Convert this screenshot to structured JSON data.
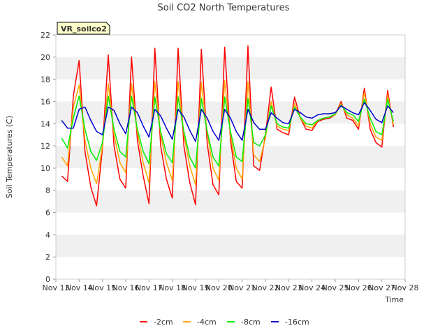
{
  "chart_data": {
    "type": "line",
    "title": "Soil CO2 North Temperatures",
    "xlabel": "Time",
    "ylabel": "Soil Temperatures (C)",
    "xlim": [
      "2024-11-13",
      "2024-11-28"
    ],
    "ylim": [
      0,
      22
    ],
    "x_ticks": [
      "Nov 13",
      "Nov 14",
      "Nov 15",
      "Nov 16",
      "Nov 17",
      "Nov 18",
      "Nov 19",
      "Nov 20",
      "Nov 21",
      "Nov 22",
      "Nov 23",
      "Nov 24",
      "Nov 25",
      "Nov 26",
      "Nov 27",
      "Nov 28"
    ],
    "y_ticks": [
      0,
      2,
      4,
      6,
      8,
      10,
      12,
      14,
      16,
      18,
      20,
      22
    ],
    "grid": "horizontal alternating bands",
    "legend_position": "bottom",
    "annotation": "VR_soilco2",
    "colors": {
      "band": "#f0f0f0",
      "axis": "#cccccc",
      "annotation_bg": "#ffffcc",
      "annotation_text": "#8b0000"
    },
    "series": [
      {
        "name": "-2cm",
        "color": "#ff0000",
        "x": [
          "11-13 06:00",
          "11-13 12:00",
          "11-13 18:00",
          "11-14 00:00",
          "11-14 06:00",
          "11-14 12:00",
          "11-14 18:00",
          "11-15 00:00",
          "11-15 06:00",
          "11-15 12:00",
          "11-15 18:00",
          "11-16 00:00",
          "11-16 06:00",
          "11-16 12:00",
          "11-16 18:00",
          "11-17 00:00",
          "11-17 06:00",
          "11-17 12:00",
          "11-17 18:00",
          "11-18 00:00",
          "11-18 06:00",
          "11-18 12:00",
          "11-18 18:00",
          "11-19 00:00",
          "11-19 06:00",
          "11-19 12:00",
          "11-19 18:00",
          "11-20 00:00",
          "11-20 06:00",
          "11-20 12:00",
          "11-20 18:00",
          "11-21 00:00",
          "11-21 06:00",
          "11-21 12:00",
          "11-21 18:00",
          "11-22 00:00",
          "11-22 06:00",
          "11-22 12:00",
          "11-22 18:00",
          "11-23 00:00",
          "11-23 06:00",
          "11-23 12:00",
          "11-23 18:00",
          "11-24 00:00",
          "11-24 06:00",
          "11-24 12:00",
          "11-24 18:00",
          "11-25 00:00",
          "11-25 06:00",
          "11-25 12:00",
          "11-25 18:00",
          "11-26 00:00",
          "11-26 06:00",
          "11-26 12:00",
          "11-26 18:00",
          "11-27 00:00",
          "11-27 06:00",
          "11-27 12:00"
        ],
        "values": [
          9.3,
          8.8,
          16.5,
          19.7,
          11.5,
          8.3,
          6.6,
          11.8,
          20.2,
          12.0,
          9.0,
          8.2,
          20.0,
          12.5,
          9.3,
          6.8,
          20.8,
          12.0,
          9.0,
          7.3,
          20.8,
          12.0,
          8.7,
          6.7,
          20.7,
          12.2,
          8.5,
          7.6,
          20.9,
          12.5,
          8.8,
          8.2,
          21.0,
          10.2,
          9.8,
          13.0,
          17.3,
          13.5,
          13.2,
          13.0,
          16.4,
          14.5,
          13.5,
          13.4,
          14.2,
          14.4,
          14.5,
          14.8,
          16.0,
          14.5,
          14.3,
          13.5,
          17.2,
          13.5,
          12.3,
          11.9,
          17.0,
          13.7
        ]
      },
      {
        "name": "-4cm",
        "color": "#ffa500",
        "x": [
          "11-13 06:00",
          "11-13 12:00",
          "11-13 18:00",
          "11-14 00:00",
          "11-14 06:00",
          "11-14 12:00",
          "11-14 18:00",
          "11-15 00:00",
          "11-15 06:00",
          "11-15 12:00",
          "11-15 18:00",
          "11-16 00:00",
          "11-16 06:00",
          "11-16 12:00",
          "11-16 18:00",
          "11-17 00:00",
          "11-17 06:00",
          "11-17 12:00",
          "11-17 18:00",
          "11-18 00:00",
          "11-18 06:00",
          "11-18 12:00",
          "11-18 18:00",
          "11-19 00:00",
          "11-19 06:00",
          "11-19 12:00",
          "11-19 18:00",
          "11-20 00:00",
          "11-20 06:00",
          "11-20 12:00",
          "11-20 18:00",
          "11-21 00:00",
          "11-21 06:00",
          "11-21 12:00",
          "11-21 18:00",
          "11-22 00:00",
          "11-22 06:00",
          "11-22 12:00",
          "11-22 18:00",
          "11-23 00:00",
          "11-23 06:00",
          "11-23 12:00",
          "11-23 18:00",
          "11-24 00:00",
          "11-24 06:00",
          "11-24 12:00",
          "11-24 18:00",
          "11-25 00:00",
          "11-25 06:00",
          "11-25 12:00",
          "11-25 18:00",
          "11-26 00:00",
          "11-26 06:00",
          "11-26 12:00",
          "11-26 18:00",
          "11-27 00:00",
          "11-27 06:00",
          "11-27 12:00"
        ],
        "values": [
          11.0,
          10.2,
          15.5,
          17.5,
          12.5,
          10.0,
          8.6,
          12.0,
          17.6,
          13.0,
          10.5,
          9.6,
          17.6,
          13.2,
          10.5,
          8.7,
          17.8,
          13.0,
          10.5,
          8.9,
          17.8,
          13.0,
          10.2,
          8.5,
          17.7,
          13.2,
          10.0,
          8.9,
          17.9,
          13.0,
          10.0,
          9.0,
          17.8,
          11.2,
          10.6,
          12.7,
          16.0,
          13.8,
          13.5,
          13.4,
          15.8,
          14.5,
          13.8,
          13.6,
          14.3,
          14.5,
          14.6,
          14.8,
          15.8,
          14.8,
          14.5,
          13.8,
          16.8,
          14.0,
          12.8,
          12.5,
          16.6,
          13.9
        ]
      },
      {
        "name": "-8cm",
        "color": "#00ee00",
        "x": [
          "11-13 06:00",
          "11-13 12:00",
          "11-13 18:00",
          "11-14 00:00",
          "11-14 06:00",
          "11-14 12:00",
          "11-14 18:00",
          "11-15 00:00",
          "11-15 06:00",
          "11-15 12:00",
          "11-15 18:00",
          "11-16 00:00",
          "11-16 06:00",
          "11-16 12:00",
          "11-16 18:00",
          "11-17 00:00",
          "11-17 06:00",
          "11-17 12:00",
          "11-17 18:00",
          "11-18 00:00",
          "11-18 06:00",
          "11-18 12:00",
          "11-18 18:00",
          "11-19 00:00",
          "11-19 06:00",
          "11-19 12:00",
          "11-19 18:00",
          "11-20 00:00",
          "11-20 06:00",
          "11-20 12:00",
          "11-20 18:00",
          "11-21 00:00",
          "11-21 06:00",
          "11-21 12:00",
          "11-21 18:00",
          "11-22 00:00",
          "11-22 06:00",
          "11-22 12:00",
          "11-22 18:00",
          "11-23 00:00",
          "11-23 06:00",
          "11-23 12:00",
          "11-23 18:00",
          "11-24 00:00",
          "11-24 06:00",
          "11-24 12:00",
          "11-24 18:00",
          "11-25 00:00",
          "11-25 06:00",
          "11-25 12:00",
          "11-25 18:00",
          "11-26 00:00",
          "11-26 06:00",
          "11-26 12:00",
          "11-26 18:00",
          "11-27 00:00",
          "11-27 06:00",
          "11-27 12:00"
        ],
        "values": [
          12.7,
          11.8,
          14.5,
          16.5,
          13.5,
          11.5,
          10.7,
          12.3,
          16.5,
          13.5,
          11.5,
          11.0,
          16.5,
          13.5,
          11.5,
          10.4,
          16.4,
          13.3,
          11.3,
          10.5,
          16.4,
          13.3,
          11.0,
          10.0,
          16.3,
          13.3,
          11.0,
          10.2,
          16.4,
          13.3,
          11.0,
          10.6,
          16.3,
          12.3,
          12.0,
          13.0,
          15.6,
          14.0,
          13.7,
          13.6,
          15.5,
          14.6,
          14.0,
          13.9,
          14.3,
          14.5,
          14.6,
          14.9,
          15.7,
          15.0,
          14.8,
          14.2,
          16.2,
          14.5,
          13.3,
          13.0,
          16.2,
          14.2
        ]
      },
      {
        "name": "-16cm",
        "color": "#0000cd",
        "x": [
          "11-13 06:00",
          "11-13 12:00",
          "11-13 18:00",
          "11-14 00:00",
          "11-14 06:00",
          "11-14 12:00",
          "11-14 18:00",
          "11-15 00:00",
          "11-15 06:00",
          "11-15 12:00",
          "11-15 18:00",
          "11-16 00:00",
          "11-16 06:00",
          "11-16 12:00",
          "11-16 18:00",
          "11-17 00:00",
          "11-17 06:00",
          "11-17 12:00",
          "11-17 18:00",
          "11-18 00:00",
          "11-18 06:00",
          "11-18 12:00",
          "11-18 18:00",
          "11-19 00:00",
          "11-19 06:00",
          "11-19 12:00",
          "11-19 18:00",
          "11-20 00:00",
          "11-20 06:00",
          "11-20 12:00",
          "11-20 18:00",
          "11-21 00:00",
          "11-21 06:00",
          "11-21 12:00",
          "11-21 18:00",
          "11-22 00:00",
          "11-22 06:00",
          "11-22 12:00",
          "11-22 18:00",
          "11-23 00:00",
          "11-23 06:00",
          "11-23 12:00",
          "11-23 18:00",
          "11-24 00:00",
          "11-24 06:00",
          "11-24 12:00",
          "11-24 18:00",
          "11-25 00:00",
          "11-25 06:00",
          "11-25 12:00",
          "11-25 18:00",
          "11-26 00:00",
          "11-26 06:00",
          "11-26 12:00",
          "11-26 18:00",
          "11-27 00:00",
          "11-27 06:00",
          "11-27 12:00"
        ],
        "values": [
          14.3,
          13.6,
          13.6,
          15.3,
          15.5,
          14.3,
          13.3,
          13.0,
          15.5,
          15.2,
          14.0,
          13.1,
          15.5,
          15.0,
          13.8,
          12.8,
          15.3,
          14.7,
          13.6,
          12.6,
          15.3,
          14.6,
          13.4,
          12.4,
          15.3,
          14.5,
          13.3,
          12.5,
          15.3,
          14.5,
          13.3,
          12.5,
          15.3,
          14.1,
          13.5,
          13.5,
          15.0,
          14.5,
          14.1,
          14.0,
          15.3,
          15.0,
          14.6,
          14.5,
          14.8,
          14.9,
          14.9,
          15.0,
          15.6,
          15.3,
          15.0,
          14.8,
          15.9,
          15.2,
          14.4,
          14.1,
          15.6,
          15.0
        ]
      }
    ]
  }
}
